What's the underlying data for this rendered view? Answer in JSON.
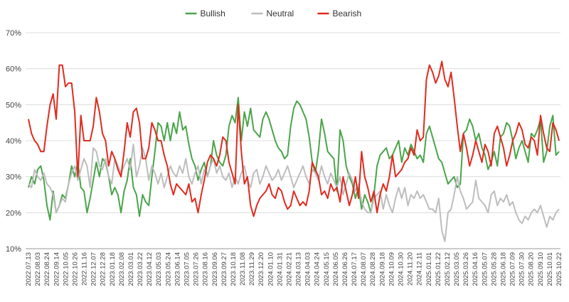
{
  "chart_data": {
    "type": "line",
    "title": "",
    "xlabel": "",
    "ylabel": "",
    "ylim": [
      10,
      70
    ],
    "yticks": [
      10,
      20,
      30,
      40,
      50,
      60,
      70
    ],
    "y_tick_format": "percent",
    "grid": true,
    "legend_position": "top-center",
    "x_tick_labels": [
      "2022.07.13",
      "2022.08.03",
      "2022.08.24",
      "2022.09.14",
      "2022.10.05",
      "2022.10.26",
      "2022.11.16",
      "2022.12.07",
      "2022.12.28",
      "2023.01.18",
      "2023.02.08",
      "2023.03.01",
      "2023.03.22",
      "2023.04.12",
      "2023.05.03",
      "2023.05.24",
      "2023.06.14",
      "2023.07.05",
      "2023.07.26",
      "2023.08.16",
      "2023.09.06",
      "2023.09.27",
      "2023.10.18",
      "2023.11.08",
      "2023.11.29",
      "2023.12.20",
      "2024.01.10",
      "2024.01.31",
      "2024.02.21",
      "2024.03.13",
      "2024.04.03",
      "2024.04.24",
      "2024.05.15",
      "2024.06.05",
      "2024.06.26",
      "2024.07.17",
      "2024.08.07",
      "2024.08.28",
      "2024.09.18",
      "2024.10.09",
      "2024.10.30",
      "2024.11.20",
      "2024.12.11",
      "2025.01.01",
      "2025.01.22",
      "2025.02.12",
      "2025.03.05",
      "2025.03.26",
      "2025.04.16",
      "2025.05.07",
      "2025.05.28",
      "2025.06.18",
      "2025.07.09",
      "2025.07.30",
      "2025.08.20",
      "2025.09.10",
      "2025.10.01",
      "2025.10.22"
    ],
    "series": [
      {
        "name": "Bullish",
        "color": "#4aa44a",
        "values": [
          27,
          30,
          28,
          32,
          33,
          29,
          22,
          18,
          26,
          20,
          22,
          25,
          24,
          28,
          33,
          30,
          34,
          27,
          26,
          20,
          24,
          29,
          34,
          30,
          35,
          34,
          30,
          25,
          27,
          25,
          20,
          26,
          29,
          35,
          27,
          25,
          19,
          25,
          23,
          22,
          30,
          37,
          45,
          44,
          40,
          45,
          40,
          45,
          42,
          48,
          43,
          44,
          39,
          35,
          33,
          29,
          32,
          34,
          30,
          33,
          40,
          36,
          34,
          33,
          36,
          44,
          47,
          45,
          52,
          40,
          48,
          44,
          49,
          43,
          42,
          41,
          46,
          48,
          46,
          43,
          40,
          38,
          37,
          35,
          36,
          44,
          49,
          51,
          50,
          48,
          46,
          41,
          34,
          31,
          37,
          46,
          42,
          37,
          36,
          35,
          26,
          43,
          40,
          33,
          30,
          28,
          24,
          27,
          21,
          25,
          23,
          20,
          25,
          33,
          36,
          37,
          38,
          35,
          36,
          38,
          40,
          34,
          38,
          36,
          39,
          37,
          35,
          36,
          34,
          42,
          44,
          41,
          38,
          35,
          34,
          31,
          28,
          29,
          30,
          27,
          28,
          42,
          43,
          46,
          44,
          40,
          42,
          38,
          36,
          32,
          34,
          37,
          33,
          41,
          42,
          45,
          44,
          40,
          35,
          38,
          40,
          37,
          34,
          42,
          41,
          43,
          46,
          34,
          37,
          44,
          47,
          36,
          37
        ]
      },
      {
        "name": "Neutral",
        "color": "#bdbdbd",
        "values": [
          28,
          27,
          32,
          30,
          29,
          31,
          28,
          27,
          25,
          20,
          22,
          24,
          23,
          28,
          31,
          33,
          29,
          32,
          35,
          33,
          27,
          38,
          37,
          33,
          32,
          35,
          30,
          28,
          35,
          33,
          31,
          33,
          35,
          32,
          39,
          30,
          33,
          38,
          35,
          29,
          33,
          31,
          28,
          31,
          27,
          30,
          33,
          31,
          30,
          33,
          31,
          35,
          30,
          28,
          31,
          33,
          28,
          32,
          30,
          33,
          35,
          31,
          33,
          30,
          29,
          31,
          27,
          30,
          28,
          31,
          33,
          29,
          27,
          31,
          32,
          28,
          30,
          33,
          31,
          29,
          30,
          32,
          29,
          31,
          33,
          30,
          27,
          29,
          31,
          33,
          30,
          28,
          32,
          31,
          29,
          33,
          30,
          28,
          31,
          29,
          27,
          30,
          25,
          28,
          31,
          29,
          26,
          28,
          23,
          21,
          20,
          20,
          24,
          25,
          26,
          21,
          25,
          22,
          20,
          24,
          27,
          24,
          27,
          22,
          25,
          24,
          26,
          24,
          25,
          23,
          21,
          21,
          20,
          24,
          15,
          12,
          20,
          21,
          25,
          30,
          26,
          24,
          21,
          22,
          23,
          29,
          24,
          23,
          22,
          20,
          25,
          26,
          22,
          24,
          23,
          25,
          22,
          23,
          20,
          18,
          17,
          19,
          18,
          20,
          21,
          20,
          22,
          19,
          16,
          19,
          18,
          20,
          21
        ]
      },
      {
        "name": "Bearish",
        "color": "#e02b1f",
        "values": [
          46,
          42,
          40,
          39,
          37,
          37,
          44,
          50,
          53,
          46,
          61,
          61,
          55,
          56,
          56,
          48,
          30,
          47,
          40,
          40,
          40,
          44,
          52,
          48,
          42,
          40,
          33,
          37,
          35,
          32,
          30,
          37,
          45,
          41,
          48,
          49,
          45,
          35,
          35,
          38,
          45,
          43,
          40,
          40,
          36,
          33,
          28,
          25,
          28,
          27,
          26,
          25,
          28,
          23,
          24,
          20,
          25,
          29,
          34,
          36,
          35,
          33,
          36,
          41,
          40,
          34,
          31,
          28,
          50,
          37,
          28,
          30,
          22,
          19,
          22,
          24,
          25,
          26,
          28,
          25,
          24,
          27,
          26,
          23,
          21,
          22,
          26,
          24,
          22,
          23,
          22,
          26,
          34,
          32,
          30,
          25,
          26,
          24,
          28,
          26,
          27,
          23,
          30,
          26,
          22,
          25,
          30,
          24,
          37,
          30,
          27,
          23,
          26,
          20,
          25,
          28,
          26,
          30,
          36,
          30,
          31,
          32,
          34,
          35,
          38,
          36,
          43,
          40,
          41,
          57,
          61,
          59,
          56,
          58,
          62,
          57,
          55,
          59,
          52,
          44,
          37,
          42,
          38,
          33,
          36,
          40,
          37,
          34,
          39,
          37,
          33,
          42,
          44,
          41,
          38,
          33,
          36,
          40,
          42,
          45,
          43,
          39,
          38,
          41,
          40,
          36,
          47,
          42,
          38,
          37,
          45,
          43,
          40
        ]
      }
    ]
  }
}
